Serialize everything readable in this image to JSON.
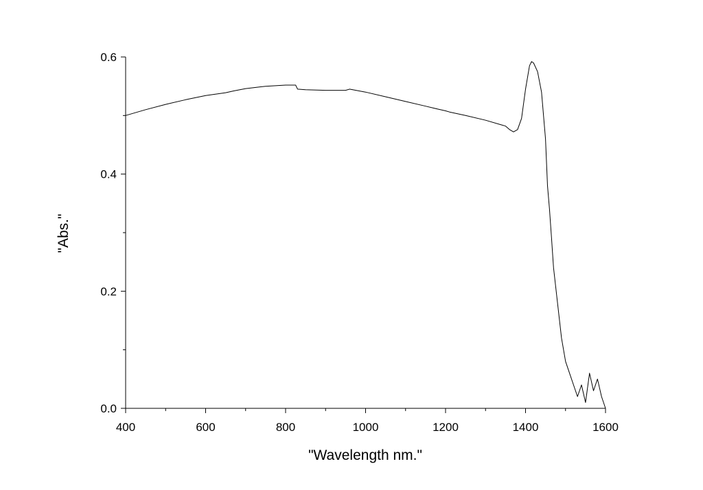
{
  "chart_data": {
    "type": "line",
    "title": "",
    "xlabel": "\"Wavelength nm.\"",
    "ylabel": "\"Abs.\"",
    "xlim": [
      400,
      1600
    ],
    "ylim": [
      0.0,
      0.6
    ],
    "x_ticks": [
      400,
      600,
      800,
      1000,
      1200,
      1400,
      1600
    ],
    "x_tick_labels": [
      "400",
      "600",
      "800",
      "1000",
      "1200",
      "1400",
      "1600"
    ],
    "y_ticks": [
      0.0,
      0.2,
      0.4,
      0.6
    ],
    "y_tick_labels": [
      "0.0",
      "0.2",
      "0.4",
      "0.6"
    ],
    "grid": false,
    "series": [
      {
        "color": "#000000",
        "x": [
          400,
          450,
          500,
          550,
          600,
          650,
          670,
          700,
          750,
          800,
          825,
          830,
          850,
          900,
          950,
          960,
          1000,
          1050,
          1100,
          1150,
          1180,
          1200,
          1210,
          1250,
          1300,
          1340,
          1350,
          1360,
          1370,
          1380,
          1390,
          1400,
          1410,
          1415,
          1420,
          1430,
          1440,
          1450,
          1455,
          1460,
          1465,
          1470,
          1480,
          1490,
          1500,
          1510,
          1520,
          1530,
          1540,
          1550,
          1560,
          1570,
          1580,
          1590,
          1600
        ],
        "y": [
          0.5,
          0.51,
          0.519,
          0.527,
          0.534,
          0.539,
          0.542,
          0.546,
          0.55,
          0.552,
          0.552,
          0.545,
          0.544,
          0.543,
          0.543,
          0.545,
          0.54,
          0.532,
          0.524,
          0.516,
          0.511,
          0.508,
          0.506,
          0.5,
          0.492,
          0.484,
          0.482,
          0.476,
          0.472,
          0.476,
          0.495,
          0.545,
          0.585,
          0.592,
          0.59,
          0.575,
          0.54,
          0.46,
          0.38,
          0.34,
          0.29,
          0.24,
          0.18,
          0.12,
          0.08,
          0.06,
          0.04,
          0.02,
          0.04,
          0.01,
          0.06,
          0.03,
          0.05,
          0.02,
          0.0
        ]
      }
    ]
  }
}
